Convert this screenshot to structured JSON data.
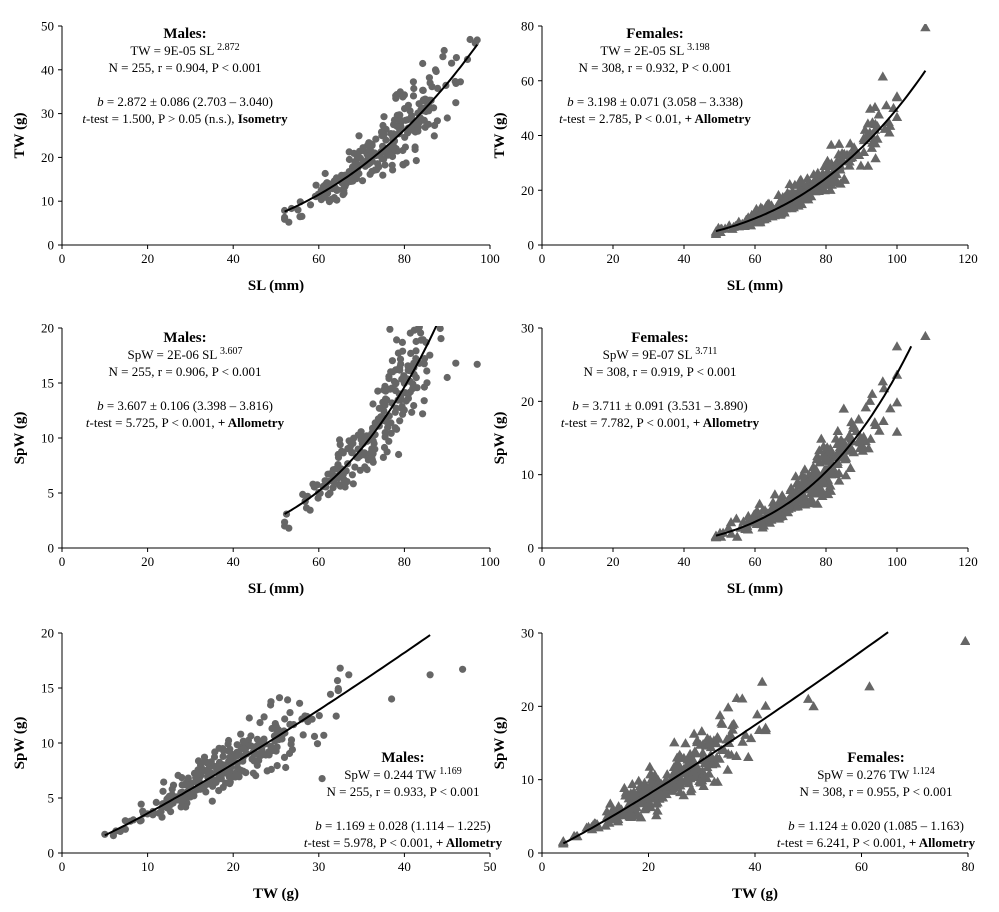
{
  "chart_data": [
    {
      "type": "scatter",
      "xlabel": "SL (mm)",
      "ylabel": "TW (g)",
      "xlim": [
        0,
        100
      ],
      "ylim": [
        0,
        50
      ],
      "xticks": [
        "0",
        "20",
        "40",
        "60",
        "80",
        "100"
      ],
      "yticks": [
        "0",
        "10",
        "20",
        "30",
        "40",
        "50"
      ],
      "grid": false,
      "marker": "circle",
      "marker_color": "#666666",
      "fit": {
        "kind": "power",
        "a": 9e-05,
        "b": 2.872,
        "x_range": [
          52,
          97
        ]
      },
      "points_cloud": {
        "n": 255,
        "x_range": [
          52,
          97
        ],
        "scatter_sd": 0.13
      },
      "outliers": [
        [
          97,
          46.8
        ],
        [
          89,
          43
        ],
        [
          92,
          32.5
        ],
        [
          53,
          5.2
        ],
        [
          52,
          6.3
        ],
        [
          78,
          33.5
        ],
        [
          86,
          37
        ]
      ],
      "annotation": {
        "title": "Males:",
        "equation_lhs": "TW = 9E-05 SL",
        "equation_exp": "2.872",
        "stats": "N = 255, r = 0.904, P < 0.001",
        "b_rest": " = 2.872 ± 0.086 (2.703 – 3.040)",
        "t_rest": "-test = 1.500, P > 0.05 (n.s.), ",
        "t_bold": "Isometry"
      }
    },
    {
      "type": "scatter",
      "xlabel": "SL (mm)",
      "ylabel": "TW (g)",
      "xlim": [
        0,
        120
      ],
      "ylim": [
        0,
        80
      ],
      "xticks": [
        "0",
        "20",
        "40",
        "60",
        "80",
        "100",
        "120"
      ],
      "yticks": [
        "0",
        "20",
        "40",
        "60",
        "80"
      ],
      "grid": false,
      "marker": "triangle",
      "marker_color": "#666666",
      "fit": {
        "kind": "power",
        "a": 2e-05,
        "b": 3.198,
        "x_range": [
          49,
          108
        ]
      },
      "points_cloud": {
        "n": 308,
        "x_range": [
          49,
          100
        ],
        "scatter_sd": 0.13
      },
      "outliers": [
        [
          108,
          79.5
        ],
        [
          96,
          61.5
        ],
        [
          97,
          51
        ],
        [
          99,
          50
        ],
        [
          49,
          4
        ],
        [
          91,
          42
        ],
        [
          93,
          40
        ]
      ],
      "annotation": {
        "title": "Females:",
        "equation_lhs": "TW = 2E-05 SL",
        "equation_exp": "3.198",
        "stats": "N = 308, r = 0.932, P < 0.001",
        "b_rest": " = 3.198 ± 0.071 (3.058 – 3.338)",
        "t_rest": "-test = 2.785, P < 0.01, ",
        "t_bold": "+ Allometry"
      }
    },
    {
      "type": "scatter",
      "xlabel": "SL (mm)",
      "ylabel": "SpW (g)",
      "xlim": [
        0,
        100
      ],
      "ylim": [
        0,
        20
      ],
      "xticks": [
        "0",
        "20",
        "40",
        "60",
        "80",
        "100"
      ],
      "yticks": [
        "0",
        "5",
        "10",
        "15",
        "20"
      ],
      "grid": false,
      "marker": "circle",
      "marker_color": "#666666",
      "fit": {
        "kind": "power",
        "a": 2e-06,
        "b": 3.607,
        "x_range": [
          52,
          94
        ]
      },
      "points_cloud": {
        "n": 255,
        "x_range": [
          52,
          97
        ],
        "scatter_sd": 0.17
      },
      "outliers": [
        [
          97,
          16.7
        ],
        [
          92,
          16.8
        ],
        [
          78,
          16.2
        ],
        [
          53,
          1.8
        ],
        [
          52,
          2.0
        ],
        [
          90,
          15.5
        ]
      ],
      "annotation": {
        "title": "Males:",
        "equation_lhs": "SpW = 2E-06 SL",
        "equation_exp": "3.607",
        "stats": "N = 255, r = 0.906, P < 0.001",
        "b_rest": " = 3.607 ± 0.106 (3.398 – 3.816)",
        "t_rest": "-test = 5.725, P < 0.001, ",
        "t_bold": "+ Allometry"
      }
    },
    {
      "type": "scatter",
      "xlabel": "SL (mm)",
      "ylabel": "SpW (g)",
      "xlim": [
        0,
        120
      ],
      "ylim": [
        0,
        30
      ],
      "xticks": [
        "0",
        "20",
        "40",
        "60",
        "80",
        "100",
        "120"
      ],
      "yticks": [
        "0",
        "10",
        "20",
        "30"
      ],
      "grid": false,
      "marker": "triangle",
      "marker_color": "#666666",
      "fit": {
        "kind": "power",
        "a": 9e-07,
        "b": 3.711,
        "x_range": [
          49,
          104
        ]
      },
      "points_cloud": {
        "n": 308,
        "x_range": [
          49,
          100
        ],
        "scatter_sd": 0.17
      },
      "outliers": [
        [
          108,
          28.9
        ],
        [
          96,
          22.7
        ],
        [
          93,
          21
        ],
        [
          49,
          1.6
        ],
        [
          85,
          19
        ]
      ],
      "annotation": {
        "title": "Females:",
        "equation_lhs": "SpW = 9E-07 SL",
        "equation_exp": "3.711",
        "stats": "N = 308, r = 0.919, P < 0.001",
        "b_rest": " = 3.711 ± 0.091 (3.531 – 3.890)",
        "t_rest": "-test = 7.782, P < 0.001, ",
        "t_bold": "+ Allometry"
      }
    },
    {
      "type": "scatter",
      "xlabel": "TW (g)",
      "ylabel": "SpW (g)",
      "xlim": [
        0,
        50
      ],
      "ylim": [
        0,
        20
      ],
      "xticks": [
        "0",
        "10",
        "20",
        "30",
        "40",
        "50"
      ],
      "yticks": [
        "0",
        "5",
        "10",
        "15",
        "20"
      ],
      "grid": false,
      "marker": "circle",
      "marker_color": "#666666",
      "fit": {
        "kind": "power",
        "a": 0.244,
        "b": 1.169,
        "x_range": [
          5,
          43
        ]
      },
      "points_cloud": {
        "n": 255,
        "x_range": [
          6,
          33
        ],
        "scatter_sd": 0.15
      },
      "outliers": [
        [
          46.8,
          16.7
        ],
        [
          43,
          16.2
        ],
        [
          38.5,
          14
        ],
        [
          32.5,
          16.8
        ],
        [
          5,
          1.7
        ],
        [
          6.3,
          2.0
        ],
        [
          33.5,
          16.2
        ]
      ],
      "annotation": {
        "title": "Males:",
        "equation_lhs": "SpW = 0.244 TW",
        "equation_exp": "1.169",
        "stats": "N = 255, r = 0.933, P < 0.001",
        "b_rest": " = 1.169 ± 0.028 (1.114 – 1.225)",
        "t_rest": "-test = 5.978, P < 0.001, ",
        "t_bold": "+ Allometry"
      }
    },
    {
      "type": "scatter",
      "xlabel": "TW (g)",
      "ylabel": "SpW (g)",
      "xlim": [
        0,
        80
      ],
      "ylim": [
        0,
        30
      ],
      "xticks": [
        "0",
        "20",
        "40",
        "60",
        "80"
      ],
      "yticks": [
        "0",
        "10",
        "20",
        "30"
      ],
      "grid": false,
      "marker": "triangle",
      "marker_color": "#666666",
      "fit": {
        "kind": "power",
        "a": 0.276,
        "b": 1.124,
        "x_range": [
          4,
          65
        ]
      },
      "points_cloud": {
        "n": 308,
        "x_range": [
          4,
          42
        ],
        "scatter_sd": 0.15
      },
      "outliers": [
        [
          79.5,
          28.9
        ],
        [
          61.5,
          22.7
        ],
        [
          51,
          20
        ],
        [
          50,
          21
        ],
        [
          42,
          17
        ],
        [
          4,
          1.6
        ]
      ],
      "annotation": {
        "title": "Females:",
        "equation_lhs": "SpW = 0.276 TW",
        "equation_exp": "1.124",
        "stats": "N = 308, r = 0.955, P < 0.001",
        "b_rest": " = 1.124 ± 0.020 (1.085 – 1.163)",
        "t_rest": "-test = 6.241, P < 0.001, ",
        "t_bold": "+ Allometry"
      }
    }
  ],
  "italic_b": "b",
  "italic_t": "t"
}
